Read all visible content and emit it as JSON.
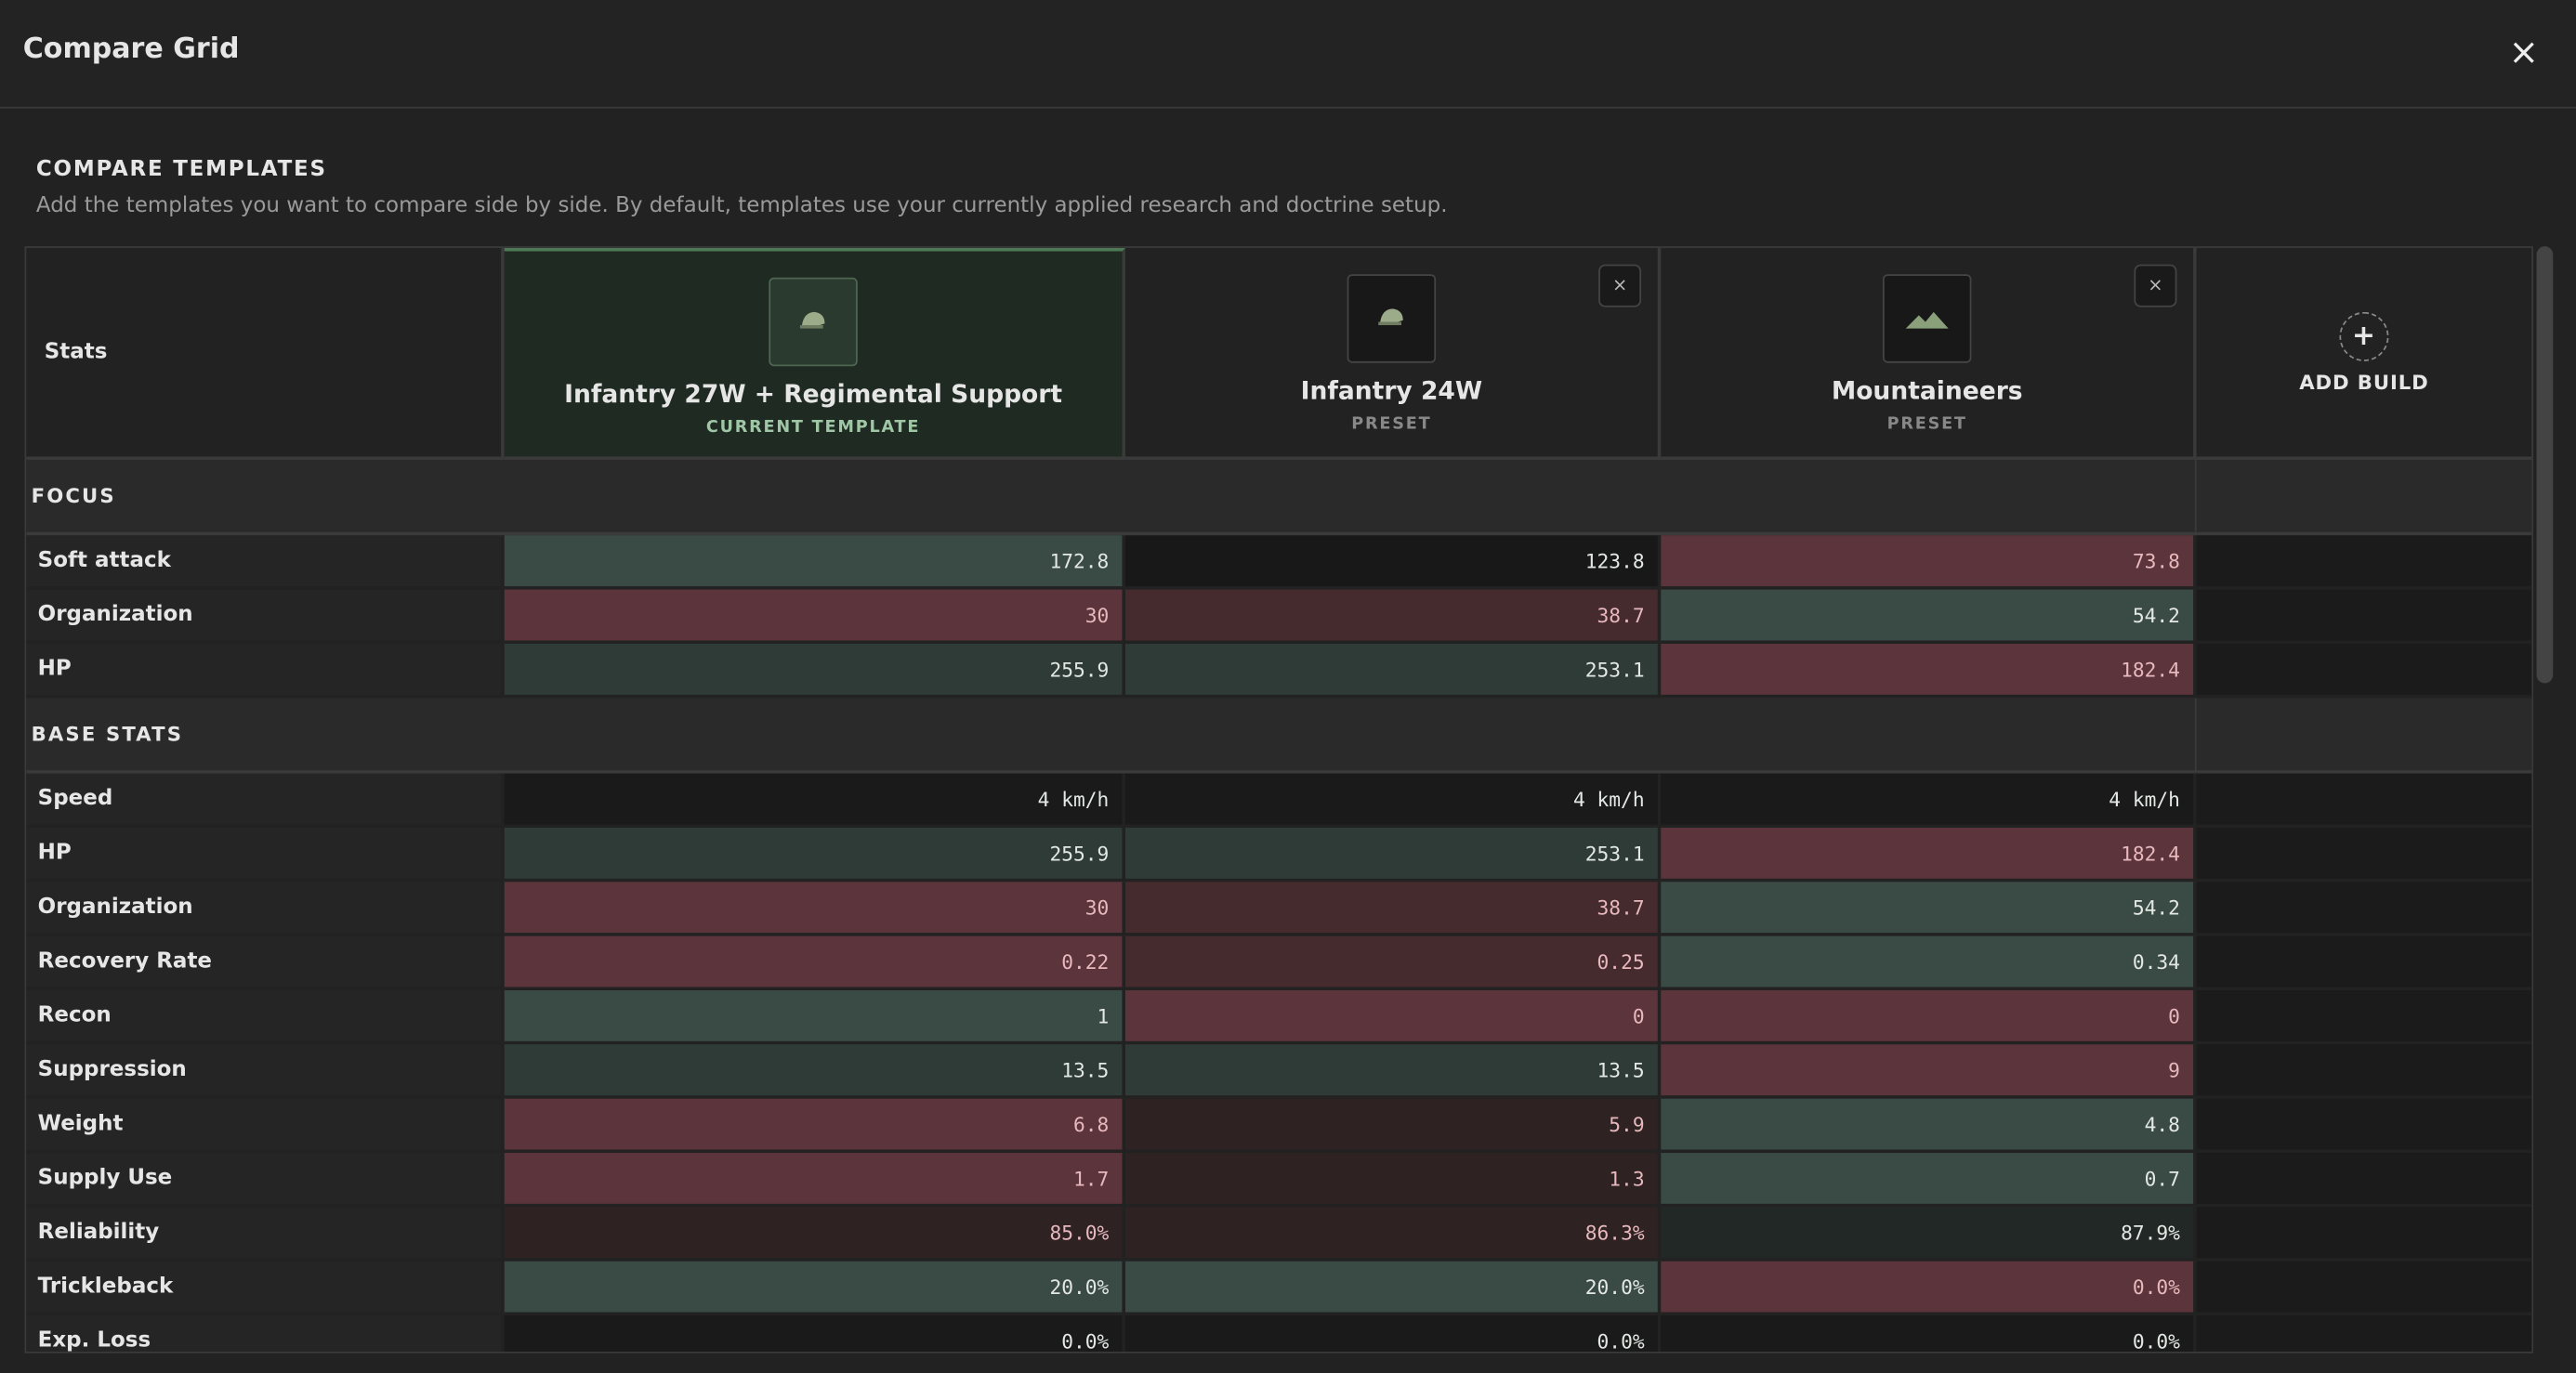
{
  "header": {
    "title": "Compare Grid",
    "close": "×"
  },
  "section": {
    "title": "COMPARE TEMPLATES",
    "subtitle": "Add the templates you want to compare side by side. By default, templates use your currently applied research and doctrine setup."
  },
  "table": {
    "stats_label": "Stats",
    "builds": [
      {
        "name": "Infantry 27W + Regimental Support",
        "subtitle": "CURRENT TEMPLATE"
      },
      {
        "name": "Infantry 24W",
        "subtitle": "PRESET",
        "remove": "×"
      },
      {
        "name": "Mountaineers",
        "subtitle": "PRESET",
        "remove": "×"
      }
    ],
    "add_build": {
      "icon": "+",
      "label": "ADD BUILD"
    },
    "groups": [
      {
        "name": "FOCUS",
        "rows": [
          {
            "label": "Soft attack",
            "values": [
              172.8,
              123.8,
              73.8
            ],
            "colors": [
              "#3a4a45",
              "#181818",
              "#5c343b"
            ]
          },
          {
            "label": "Organization",
            "values": [
              30,
              38.7,
              54.2
            ],
            "colors": [
              "#5c343b",
              "#452a2e",
              "#3a4a45"
            ]
          },
          {
            "label": "HP",
            "values": [
              255.9,
              253.1,
              182.4
            ],
            "colors": [
              "#2f3b37",
              "#2f3b37",
              "#5c343b"
            ]
          }
        ]
      },
      {
        "name": "BASE STATS",
        "rows": [
          {
            "label": "Speed",
            "values": [
              "4 km/h",
              "4 km/h",
              "4 km/h"
            ],
            "colors": [
              "#1a1a1a",
              "#1a1a1a",
              "#1a1a1a"
            ]
          },
          {
            "label": "HP",
            "values": [
              255.9,
              253.1,
              182.4
            ],
            "colors": [
              "#2f3b37",
              "#2f3b37",
              "#5c343b"
            ]
          },
          {
            "label": "Organization",
            "values": [
              30,
              38.7,
              54.2
            ],
            "colors": [
              "#5c343b",
              "#452a2e",
              "#3a4a45"
            ]
          },
          {
            "label": "Recovery Rate",
            "values": [
              0.22,
              0.25,
              0.34
            ],
            "colors": [
              "#5c343b",
              "#452a2e",
              "#3a4a45"
            ]
          },
          {
            "label": "Recon",
            "values": [
              1,
              0,
              0
            ],
            "colors": [
              "#3a4a45",
              "#5c343b",
              "#5c343b"
            ]
          },
          {
            "label": "Suppression",
            "values": [
              13.5,
              13.5,
              9
            ],
            "colors": [
              "#2f3b37",
              "#2f3b37",
              "#5c343b"
            ]
          },
          {
            "label": "Weight",
            "values": [
              6.8,
              5.9,
              4.8
            ],
            "colors": [
              "#5c343b",
              "#2e2223",
              "#3a4a45"
            ]
          },
          {
            "label": "Supply Use",
            "values": [
              1.7,
              1.3,
              0.7
            ],
            "colors": [
              "#5c343b",
              "#2e2223",
              "#3a4a45"
            ]
          },
          {
            "label": "Reliability",
            "values": [
              "85.0%",
              "86.3%",
              "87.9%"
            ],
            "colors": [
              "#2e2223",
              "#2e2223",
              "#222826"
            ]
          },
          {
            "label": "Trickleback",
            "values": [
              "20.0%",
              "20.0%",
              "0.0%"
            ],
            "colors": [
              "#3a4a45",
              "#3a4a45",
              "#5c343b"
            ]
          },
          {
            "label": "Exp. Loss",
            "values": [
              "0.0%",
              "0.0%",
              "0.0%"
            ],
            "colors": [
              "#1a1a1a",
              "#1a1a1a",
              "#1a1a1a"
            ]
          }
        ]
      }
    ]
  }
}
